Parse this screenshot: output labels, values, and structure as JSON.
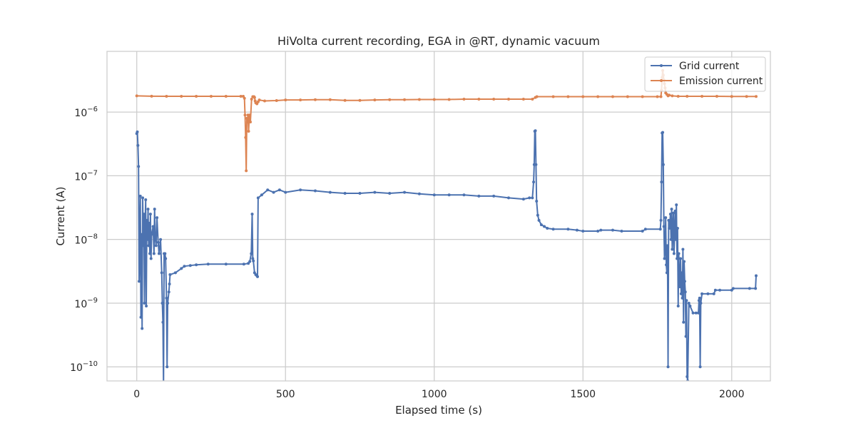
{
  "chart_data": {
    "type": "line",
    "title": "HiVolta current recording, EGA in @RT, dynamic vacuum",
    "xlabel": "Elapsed time (s)",
    "ylabel": "Current (A)",
    "xlim": [
      -100,
      2130
    ],
    "ylim": [
      6e-11,
      9e-06
    ],
    "yscale": "log",
    "grid": true,
    "legend_position": "upper right",
    "x_ticks": [
      {
        "value": 0,
        "label": "0"
      },
      {
        "value": 500,
        "label": "500"
      },
      {
        "value": 1000,
        "label": "1000"
      },
      {
        "value": 1500,
        "label": "1500"
      },
      {
        "value": 2000,
        "label": "2000"
      }
    ],
    "y_ticks": [
      {
        "value": 1e-10,
        "base": "10",
        "exp": "−10"
      },
      {
        "value": 1e-09,
        "base": "10",
        "exp": "−9"
      },
      {
        "value": 1e-08,
        "base": "10",
        "exp": "−8"
      },
      {
        "value": 1e-07,
        "base": "10",
        "exp": "−7"
      },
      {
        "value": 1e-06,
        "base": "10",
        "exp": "−6"
      }
    ],
    "series": [
      {
        "name": "Grid current",
        "color": "#4c72b0",
        "points": [
          [
            0,
            4.6e-07
          ],
          [
            2,
            4.9e-07
          ],
          [
            4,
            3e-07
          ],
          [
            6,
            1.4e-07
          ],
          [
            8,
            2.2e-09
          ],
          [
            10,
            7e-09
          ],
          [
            12,
            4.8e-08
          ],
          [
            14,
            6e-10
          ],
          [
            16,
            1.2e-08
          ],
          [
            18,
            4e-10
          ],
          [
            20,
            4.5e-08
          ],
          [
            22,
            8e-09
          ],
          [
            24,
            2.5e-08
          ],
          [
            26,
            1e-09
          ],
          [
            28,
            1.5e-08
          ],
          [
            30,
            4.2e-08
          ],
          [
            32,
            9e-10
          ],
          [
            34,
            2e-08
          ],
          [
            36,
            1e-08
          ],
          [
            38,
            3e-08
          ],
          [
            40,
            8e-09
          ],
          [
            42,
            1.8e-08
          ],
          [
            44,
            6e-09
          ],
          [
            46,
            2.5e-08
          ],
          [
            48,
            5e-09
          ],
          [
            50,
            1.2e-08
          ],
          [
            55,
            1.6e-08
          ],
          [
            58,
            6e-09
          ],
          [
            60,
            3e-08
          ],
          [
            62,
            1.1e-08
          ],
          [
            65,
            8e-09
          ],
          [
            68,
            2.2e-08
          ],
          [
            72,
            9e-09
          ],
          [
            75,
            6e-09
          ],
          [
            80,
            1e-08
          ],
          [
            84,
            3e-09
          ],
          [
            86,
            1e-09
          ],
          [
            88,
            5e-10
          ],
          [
            90,
            5e-11
          ],
          [
            92,
            6e-09
          ],
          [
            95,
            6e-09
          ],
          [
            97,
            5e-09
          ],
          [
            100,
            1.2e-09
          ],
          [
            102,
            1e-10
          ],
          [
            104,
            1e-09
          ],
          [
            108,
            1.5e-09
          ],
          [
            110,
            2e-09
          ],
          [
            112,
            2.8e-09
          ],
          [
            130,
            3e-09
          ],
          [
            150,
            3.5e-09
          ],
          [
            160,
            3.8e-09
          ],
          [
            180,
            3.9e-09
          ],
          [
            200,
            4e-09
          ],
          [
            240,
            4.1e-09
          ],
          [
            300,
            4.1e-09
          ],
          [
            360,
            4.1e-09
          ],
          [
            375,
            4.2e-09
          ],
          [
            380,
            4.5e-09
          ],
          [
            385,
            6e-09
          ],
          [
            388,
            2.5e-08
          ],
          [
            390,
            5e-09
          ],
          [
            392,
            4.6e-09
          ],
          [
            396,
            3e-09
          ],
          [
            400,
            2.8e-09
          ],
          [
            404,
            2.7e-09
          ],
          [
            406,
            2.6e-09
          ],
          [
            408,
            4.5e-08
          ],
          [
            420,
            5e-08
          ],
          [
            440,
            6e-08
          ],
          [
            460,
            5.5e-08
          ],
          [
            480,
            6e-08
          ],
          [
            500,
            5.5e-08
          ],
          [
            550,
            6e-08
          ],
          [
            600,
            5.8e-08
          ],
          [
            650,
            5.5e-08
          ],
          [
            700,
            5.3e-08
          ],
          [
            750,
            5.3e-08
          ],
          [
            800,
            5.5e-08
          ],
          [
            850,
            5.3e-08
          ],
          [
            900,
            5.5e-08
          ],
          [
            950,
            5.2e-08
          ],
          [
            1000,
            5e-08
          ],
          [
            1050,
            5e-08
          ],
          [
            1100,
            5e-08
          ],
          [
            1150,
            4.8e-08
          ],
          [
            1200,
            4.8e-08
          ],
          [
            1250,
            4.5e-08
          ],
          [
            1300,
            4.3e-08
          ],
          [
            1320,
            4.5e-08
          ],
          [
            1330,
            4.5e-08
          ],
          [
            1334,
            8e-08
          ],
          [
            1336,
            1.5e-07
          ],
          [
            1338,
            5e-07
          ],
          [
            1340,
            5.1e-07
          ],
          [
            1342,
            1.5e-07
          ],
          [
            1344,
            4e-08
          ],
          [
            1348,
            2.4e-08
          ],
          [
            1352,
            2e-08
          ],
          [
            1360,
            1.7e-08
          ],
          [
            1370,
            1.6e-08
          ],
          [
            1380,
            1.5e-08
          ],
          [
            1400,
            1.45e-08
          ],
          [
            1450,
            1.45e-08
          ],
          [
            1480,
            1.4e-08
          ],
          [
            1500,
            1.35e-08
          ],
          [
            1550,
            1.35e-08
          ],
          [
            1560,
            1.4e-08
          ],
          [
            1600,
            1.4e-08
          ],
          [
            1630,
            1.35e-08
          ],
          [
            1700,
            1.35e-08
          ],
          [
            1710,
            1.45e-08
          ],
          [
            1760,
            1.45e-08
          ],
          [
            1762,
            2e-08
          ],
          [
            1764,
            8e-08
          ],
          [
            1766,
            4.7e-07
          ],
          [
            1768,
            4.8e-07
          ],
          [
            1770,
            1.5e-07
          ],
          [
            1772,
            1.6e-08
          ],
          [
            1774,
            5e-09
          ],
          [
            1776,
            7e-09
          ],
          [
            1778,
            2.2e-08
          ],
          [
            1780,
            4e-09
          ],
          [
            1782,
            3e-09
          ],
          [
            1784,
            8e-09
          ],
          [
            1786,
            1e-10
          ],
          [
            1788,
            2e-08
          ],
          [
            1790,
            1.5e-08
          ],
          [
            1792,
            1.8e-08
          ],
          [
            1794,
            2.5e-08
          ],
          [
            1796,
            1e-08
          ],
          [
            1798,
            3e-08
          ],
          [
            1800,
            7e-09
          ],
          [
            1802,
            1.5e-08
          ],
          [
            1804,
            2.6e-08
          ],
          [
            1806,
            6e-09
          ],
          [
            1808,
            1.2e-08
          ],
          [
            1810,
            2.8e-08
          ],
          [
            1812,
            1e-08
          ],
          [
            1814,
            3.5e-08
          ],
          [
            1816,
            5e-09
          ],
          [
            1818,
            1.5e-08
          ],
          [
            1820,
            9e-10
          ],
          [
            1822,
            6e-09
          ],
          [
            1824,
            2e-09
          ],
          [
            1826,
            1.8e-09
          ],
          [
            1828,
            5e-09
          ],
          [
            1830,
            1.4e-09
          ],
          [
            1832,
            3e-09
          ],
          [
            1834,
            1.2e-09
          ],
          [
            1836,
            7e-09
          ],
          [
            1838,
            5e-10
          ],
          [
            1840,
            4.5e-09
          ],
          [
            1842,
            2.2e-09
          ],
          [
            1844,
            1.5e-09
          ],
          [
            1846,
            3e-10
          ],
          [
            1848,
            1.1e-09
          ],
          [
            1850,
            7e-11
          ],
          [
            1852,
            6e-11
          ],
          [
            1856,
            1e-09
          ],
          [
            1860,
            9e-10
          ],
          [
            1870,
            7e-10
          ],
          [
            1880,
            7e-10
          ],
          [
            1888,
            7e-10
          ],
          [
            1890,
            1.1e-09
          ],
          [
            1892,
            1.2e-09
          ],
          [
            1894,
            1e-10
          ],
          [
            1896,
            1e-09
          ],
          [
            1900,
            1.4e-09
          ],
          [
            1920,
            1.4e-09
          ],
          [
            1940,
            1.4e-09
          ],
          [
            1945,
            1.6e-09
          ],
          [
            1960,
            1.6e-09
          ],
          [
            2000,
            1.6e-09
          ],
          [
            2005,
            1.7e-09
          ],
          [
            2060,
            1.7e-09
          ],
          [
            2080,
            1.7e-09
          ],
          [
            2082,
            2.7e-09
          ]
        ]
      },
      {
        "name": "Emission current",
        "color": "#dd8452",
        "points": [
          [
            0,
            1.8e-06
          ],
          [
            50,
            1.78e-06
          ],
          [
            100,
            1.77e-06
          ],
          [
            150,
            1.77e-06
          ],
          [
            200,
            1.77e-06
          ],
          [
            250,
            1.77e-06
          ],
          [
            300,
            1.77e-06
          ],
          [
            350,
            1.77e-06
          ],
          [
            358,
            1.77e-06
          ],
          [
            362,
            1.65e-06
          ],
          [
            364,
            9e-07
          ],
          [
            366,
            4e-07
          ],
          [
            368,
            1.2e-07
          ],
          [
            370,
            8e-07
          ],
          [
            372,
            7e-07
          ],
          [
            374,
            9e-07
          ],
          [
            376,
            5e-07
          ],
          [
            378,
            8e-07
          ],
          [
            380,
            9e-07
          ],
          [
            382,
            7e-07
          ],
          [
            386,
            1.6e-06
          ],
          [
            390,
            1.75e-06
          ],
          [
            394,
            1.75e-06
          ],
          [
            396,
            1.7e-06
          ],
          [
            398,
            1.5e-06
          ],
          [
            400,
            1.4e-06
          ],
          [
            404,
            1.35e-06
          ],
          [
            408,
            1.45e-06
          ],
          [
            412,
            1.55e-06
          ],
          [
            430,
            1.5e-06
          ],
          [
            470,
            1.52e-06
          ],
          [
            500,
            1.55e-06
          ],
          [
            550,
            1.55e-06
          ],
          [
            600,
            1.57e-06
          ],
          [
            650,
            1.57e-06
          ],
          [
            700,
            1.53e-06
          ],
          [
            750,
            1.53e-06
          ],
          [
            800,
            1.55e-06
          ],
          [
            850,
            1.57e-06
          ],
          [
            900,
            1.57e-06
          ],
          [
            950,
            1.58e-06
          ],
          [
            1000,
            1.58e-06
          ],
          [
            1050,
            1.58e-06
          ],
          [
            1100,
            1.6e-06
          ],
          [
            1150,
            1.6e-06
          ],
          [
            1200,
            1.6e-06
          ],
          [
            1250,
            1.6e-06
          ],
          [
            1300,
            1.6e-06
          ],
          [
            1330,
            1.6e-06
          ],
          [
            1340,
            1.7e-06
          ],
          [
            1345,
            1.75e-06
          ],
          [
            1400,
            1.75e-06
          ],
          [
            1450,
            1.75e-06
          ],
          [
            1500,
            1.75e-06
          ],
          [
            1550,
            1.75e-06
          ],
          [
            1600,
            1.75e-06
          ],
          [
            1650,
            1.75e-06
          ],
          [
            1700,
            1.75e-06
          ],
          [
            1750,
            1.75e-06
          ],
          [
            1762,
            1.75e-06
          ],
          [
            1764,
            2.2e-06
          ],
          [
            1766,
            3.5e-06
          ],
          [
            1768,
            4.5e-06
          ],
          [
            1770,
            3.8e-06
          ],
          [
            1772,
            3.2e-06
          ],
          [
            1774,
            2.8e-06
          ],
          [
            1776,
            2.4e-06
          ],
          [
            1778,
            2e-06
          ],
          [
            1782,
            1.9e-06
          ],
          [
            1786,
            1.8e-06
          ],
          [
            1790,
            1.85e-06
          ],
          [
            1800,
            1.8e-06
          ],
          [
            1820,
            1.77e-06
          ],
          [
            1850,
            1.77e-06
          ],
          [
            1900,
            1.77e-06
          ],
          [
            1950,
            1.77e-06
          ],
          [
            2000,
            1.76e-06
          ],
          [
            2050,
            1.76e-06
          ],
          [
            2082,
            1.76e-06
          ]
        ]
      }
    ]
  }
}
